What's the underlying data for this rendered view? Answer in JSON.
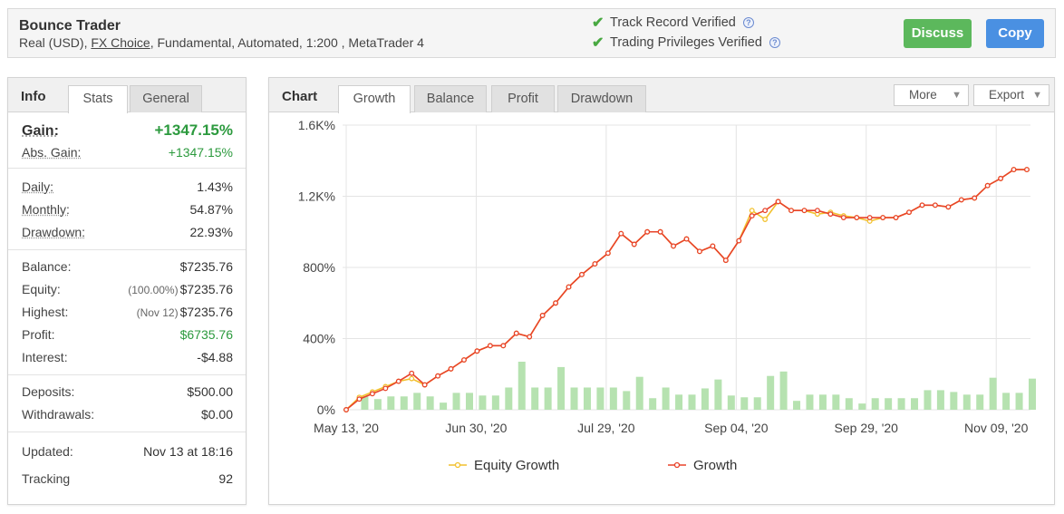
{
  "header": {
    "title": "Bounce Trader",
    "subtitle_pre": "Real (USD), ",
    "subtitle_link": "FX Choice",
    "subtitle_post": ", Fundamental, Automated, 1:200 , MetaTrader 4",
    "verified_1": "Track Record Verified",
    "verified_2": "Trading Privileges Verified",
    "discuss_label": "Discuss",
    "copy_label": "Copy"
  },
  "left_panel": {
    "tabs": [
      "Info",
      "Stats",
      "General"
    ],
    "gain_label": "Gain:",
    "gain_value": "+1347.15%",
    "abs_gain_label": "Abs. Gain:",
    "abs_gain_value": "+1347.15%",
    "daily_label": "Daily:",
    "daily_value": "1.43%",
    "monthly_label": "Monthly:",
    "monthly_value": "54.87%",
    "drawdown_label": "Drawdown:",
    "drawdown_value": "22.93%",
    "balance_label": "Balance:",
    "balance_value": "$7235.76",
    "equity_label": "Equity:",
    "equity_pre": "(100.00%)",
    "equity_value": "$7235.76",
    "highest_label": "Highest:",
    "highest_pre": "(Nov 12)",
    "highest_value": "$7235.76",
    "profit_label": "Profit:",
    "profit_value": "$6735.76",
    "interest_label": "Interest:",
    "interest_value": "-$4.88",
    "deposits_label": "Deposits:",
    "deposits_value": "$500.00",
    "withdrawals_label": "Withdrawals:",
    "withdrawals_value": "$0.00",
    "updated_label": "Updated:",
    "updated_value": "Nov 13 at 18:16",
    "tracking_label": "Tracking",
    "tracking_value": "92"
  },
  "chart_panel": {
    "title": "Chart",
    "tabs": [
      "Growth",
      "Balance",
      "Profit",
      "Drawdown"
    ],
    "more_label": "More",
    "export_label": "Export"
  },
  "chart_data": {
    "type": "line",
    "x_tick_labels": [
      "May 13, '20",
      "Jun 30, '20",
      "Jul 29, '20",
      "Sep 04, '20",
      "Sep 29, '20",
      "Nov 09, '20"
    ],
    "y_tick_labels": [
      "0%",
      "400%",
      "800%",
      "1.2K%",
      "1.6K%"
    ],
    "ylim": [
      0,
      1600
    ],
    "colors": {
      "growth": "#e8432a",
      "equity": "#f2c12e",
      "bars": "#b6e2b0"
    },
    "series": [
      {
        "name": "Equity Growth",
        "values": [
          0,
          70,
          100,
          130,
          160,
          175,
          140,
          190,
          230,
          280,
          330,
          360,
          360,
          430,
          410,
          530,
          600,
          690,
          760,
          820,
          880,
          990,
          930,
          1000,
          1000,
          920,
          960,
          890,
          920,
          840,
          950,
          1120,
          1070,
          1170,
          1120,
          1120,
          1100,
          1110,
          1090,
          1080,
          1060,
          1080,
          1080,
          1110,
          1150,
          1150,
          1140,
          1180,
          1190,
          1260,
          1300,
          1350,
          1350
        ]
      },
      {
        "name": "Growth",
        "values": [
          0,
          60,
          90,
          120,
          160,
          205,
          140,
          190,
          230,
          280,
          330,
          360,
          360,
          430,
          410,
          530,
          600,
          690,
          760,
          820,
          880,
          990,
          930,
          1000,
          1000,
          920,
          960,
          890,
          920,
          840,
          950,
          1090,
          1120,
          1170,
          1120,
          1120,
          1120,
          1100,
          1080,
          1080,
          1080,
          1080,
          1080,
          1110,
          1150,
          1150,
          1140,
          1180,
          1190,
          1260,
          1300,
          1350,
          1350
        ]
      }
    ],
    "bars": [
      0,
      75,
      60,
      75,
      75,
      95,
      75,
      40,
      95,
      95,
      80,
      80,
      125,
      270,
      125,
      125,
      240,
      125,
      125,
      125,
      125,
      105,
      185,
      65,
      125,
      85,
      85,
      120,
      170,
      80,
      70,
      70,
      190,
      215,
      50,
      85,
      85,
      85,
      65,
      35,
      65,
      65,
      65,
      65,
      110,
      110,
      100,
      85,
      85,
      180,
      95,
      95,
      175
    ]
  }
}
